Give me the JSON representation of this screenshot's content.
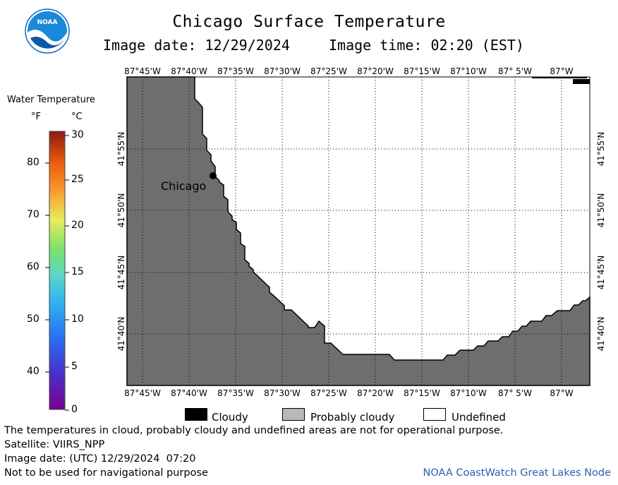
{
  "header": {
    "title": "Chicago Surface Temperature",
    "image_date": "Image date: 12/29/2024",
    "image_time": "Image time: 02:20 (EST)"
  },
  "logo": {
    "text": "NOAA"
  },
  "colorbar": {
    "title": "Water Temperature",
    "unit_f": "°F",
    "unit_c": "°C",
    "f_ticks": [
      "80",
      "70",
      "60",
      "50",
      "40"
    ],
    "c_ticks": [
      "30",
      "25",
      "20",
      "15",
      "10",
      "5",
      "0"
    ]
  },
  "map": {
    "lon_labels": [
      "87°45'W",
      "87°40'W",
      "87°35'W",
      "87°30'W",
      "87°25'W",
      "87°20'W",
      "87°15'W",
      "87°10'W",
      "87° 5'W",
      "87°W"
    ],
    "lat_labels": [
      "41°55'N",
      "41°50'N",
      "41°45'N",
      "41°40'N"
    ],
    "city_label": "Chicago",
    "land_color": "#6e6e6e",
    "water_color": "#ffffff",
    "grid": "dotted"
  },
  "key": {
    "cloudy": "Cloudy",
    "probably_cloudy": "Probably cloudy",
    "undefined": "Undefined"
  },
  "notes": {
    "line1": "The temperatures in cloud, probably cloudy and undefined areas are not for operational purpose.",
    "line2": "Satellite: VIIRS_NPP",
    "line3": "Image date: (UTC) 12/29/2024  07:20",
    "line4": "Not to be used for navigational purpose"
  },
  "credit": "NOAA CoastWatch Great Lakes Node"
}
